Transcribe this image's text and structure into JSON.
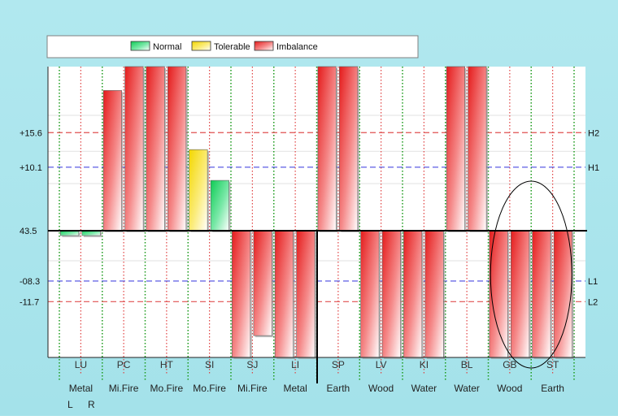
{
  "chart_data": {
    "type": "bar",
    "legend": {
      "placement": "top",
      "items": [
        {
          "label": "Normal",
          "color": "#22dd66"
        },
        {
          "label": "Tolerable",
          "color": "#ffee44"
        },
        {
          "label": "Imbalance",
          "color": "#ee2222"
        }
      ]
    },
    "baseline_label": "43.5",
    "y_tick_labels": [
      {
        "label": "+15.6",
        "value": 15.6
      },
      {
        "label": "+10.1",
        "value": 10.1
      },
      {
        "label": "-08.3",
        "value": -8.3
      },
      {
        "label": "-11.7",
        "value": -11.7
      }
    ],
    "ylim": [
      -20.9,
      26.1
    ],
    "reference_lines": [
      {
        "label": "H2",
        "value": 15.6,
        "color": "#e05050"
      },
      {
        "label": "H1",
        "value": 10.1,
        "color": "#4a4ae0"
      },
      {
        "label": "L1",
        "value": -8.3,
        "color": "#4a4ae0"
      },
      {
        "label": "L2",
        "value": -11.7,
        "color": "#e05050"
      }
    ],
    "categories": [
      {
        "code": "LU",
        "element": "Metal",
        "values": [
          -0.8,
          -0.8
        ],
        "status": [
          "normal",
          "normal"
        ]
      },
      {
        "code": "PC",
        "element": "Mi.Fire",
        "values": [
          22.3,
          26.1
        ],
        "status": [
          "imbalance",
          "imbalance"
        ]
      },
      {
        "code": "HT",
        "element": "Mo.Fire",
        "values": [
          26.1,
          26.1
        ],
        "status": [
          "imbalance",
          "imbalance"
        ]
      },
      {
        "code": "SI",
        "element": "Mo.Fire",
        "values": [
          12.9,
          8.0
        ],
        "status": [
          "tolerable",
          "normal"
        ]
      },
      {
        "code": "SJ",
        "element": "Mi.Fire",
        "values": [
          -20.9,
          -17.3
        ],
        "status": [
          "imbalance",
          "imbalance"
        ]
      },
      {
        "code": "LI",
        "element": "Metal",
        "values": [
          -20.9,
          -20.9
        ],
        "status": [
          "imbalance",
          "imbalance"
        ]
      },
      {
        "code": "SP",
        "element": "Earth",
        "values": [
          26.1,
          26.1
        ],
        "status": [
          "imbalance",
          "imbalance"
        ]
      },
      {
        "code": "LV",
        "element": "Wood",
        "values": [
          -20.9,
          -20.9
        ],
        "status": [
          "imbalance",
          "imbalance"
        ]
      },
      {
        "code": "KI",
        "element": "Water",
        "values": [
          -20.9,
          -20.9
        ],
        "status": [
          "imbalance",
          "imbalance"
        ]
      },
      {
        "code": "BL",
        "element": "Water",
        "values": [
          26.1,
          26.1
        ],
        "status": [
          "imbalance",
          "imbalance"
        ]
      },
      {
        "code": "GB",
        "element": "Wood",
        "values": [
          -20.9,
          -20.9
        ],
        "status": [
          "imbalance",
          "imbalance"
        ]
      },
      {
        "code": "ST",
        "element": "Earth",
        "values": [
          -20.9,
          -20.9
        ],
        "status": [
          "imbalance",
          "imbalance"
        ]
      }
    ],
    "side_labels": [
      "L",
      "R"
    ],
    "highlighted_categories": [
      "GB",
      "ST"
    ],
    "grid": true
  }
}
